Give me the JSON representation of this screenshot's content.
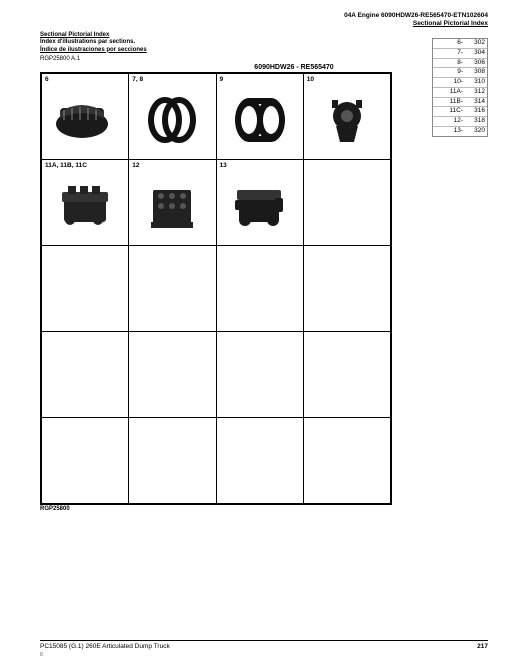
{
  "header": {
    "line1": "04A  Engine  6090HDW26-RE565470-ETN102604",
    "line2": "Sectional Pictorial Index"
  },
  "section_titles": {
    "en": "Sectional Pictorial Index",
    "fr": "Index d'illustrations par sections.",
    "es": "Índice de ilustraciones por secciones"
  },
  "ref_top": "RGP25800 A.1",
  "grid_title": "6090HDW26 - RE565470",
  "cells": [
    [
      {
        "label": "6",
        "img": "supercharger"
      },
      {
        "label": "7, 8",
        "img": "ring"
      },
      {
        "label": "9",
        "img": "coupler"
      },
      {
        "label": "10",
        "img": "pump"
      }
    ],
    [
      {
        "label": "11A, 11B, 11C",
        "img": "engine-a"
      },
      {
        "label": "12",
        "img": "block"
      },
      {
        "label": "13",
        "img": "engine-b"
      },
      {
        "label": "",
        "img": ""
      }
    ],
    [
      {
        "label": "",
        "img": ""
      },
      {
        "label": "",
        "img": ""
      },
      {
        "label": "",
        "img": ""
      },
      {
        "label": "",
        "img": ""
      }
    ],
    [
      {
        "label": "",
        "img": ""
      },
      {
        "label": "",
        "img": ""
      },
      {
        "label": "",
        "img": ""
      },
      {
        "label": "",
        "img": ""
      }
    ],
    [
      {
        "label": "",
        "img": ""
      },
      {
        "label": "",
        "img": ""
      },
      {
        "label": "",
        "img": ""
      },
      {
        "label": "",
        "img": ""
      }
    ]
  ],
  "ref_bottom": "RGP25800",
  "index_rows": [
    {
      "k": "6-",
      "v": "302"
    },
    {
      "k": "7-",
      "v": "304"
    },
    {
      "k": "8-",
      "v": "306"
    },
    {
      "k": "9-",
      "v": "308"
    },
    {
      "k": "10-",
      "v": "310"
    },
    {
      "k": "11A-",
      "v": "312"
    },
    {
      "k": "11B-",
      "v": "314"
    },
    {
      "k": "11C-",
      "v": "316"
    },
    {
      "k": "12-",
      "v": "318"
    },
    {
      "k": "13-",
      "v": "320"
    }
  ],
  "footer": {
    "left": "PC15085   (G.1)   260E Articulated Dump Truck",
    "page": "217",
    "tiny": "8"
  }
}
